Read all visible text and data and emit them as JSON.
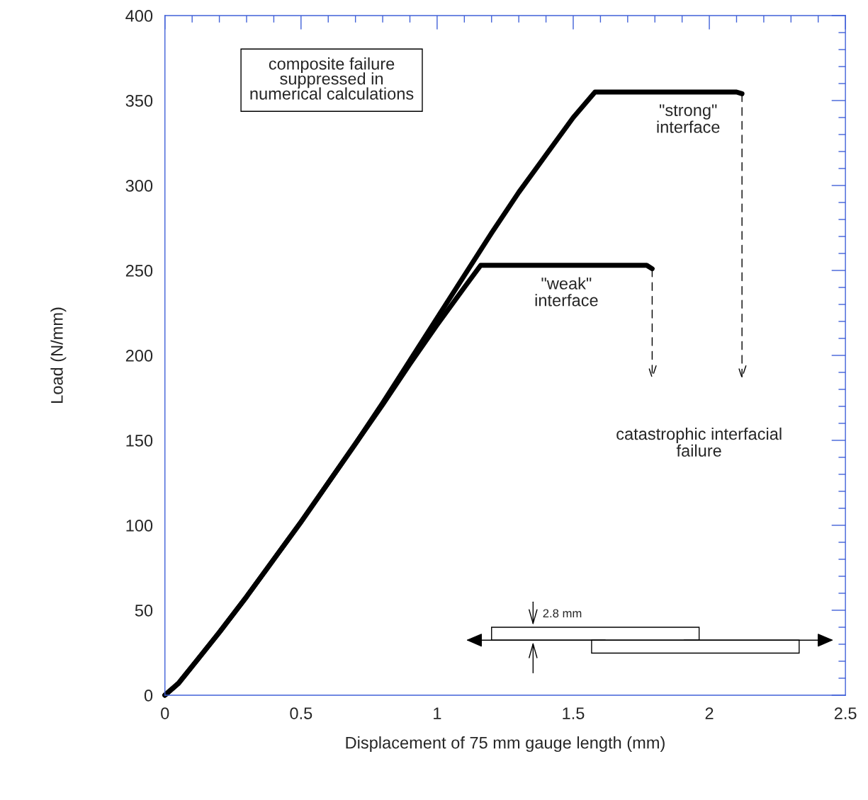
{
  "chart_data": {
    "type": "line",
    "xlabel": "Displacement of 75 mm gauge length (mm)",
    "ylabel": "Load (N/mm)",
    "xlim": [
      0,
      2.5
    ],
    "ylim": [
      0,
      400
    ],
    "xticks": [
      0,
      0.5,
      1,
      1.5,
      2,
      2.5
    ],
    "yticks": [
      0,
      50,
      100,
      150,
      200,
      250,
      300,
      350,
      400
    ],
    "grid": false,
    "legend": false,
    "marker": "none",
    "line_style": "solid",
    "series": [
      {
        "name": "\"strong\"\ninterface",
        "color": "#000000",
        "x": [
          0,
          0.05,
          0.12,
          0.2,
          0.3,
          0.4,
          0.5,
          0.6,
          0.7,
          0.8,
          0.9,
          1.0,
          1.1,
          1.2,
          1.3,
          1.4,
          1.5,
          1.58,
          2.1,
          2.12
        ],
        "values": [
          0,
          7,
          21,
          37,
          58,
          80,
          102,
          125,
          148,
          172,
          197,
          222,
          247,
          272,
          296,
          318,
          340,
          355,
          355,
          354
        ]
      },
      {
        "name": "\"weak\"\ninterface",
        "color": "#000000",
        "x": [
          0,
          0.05,
          0.12,
          0.2,
          0.3,
          0.4,
          0.5,
          0.6,
          0.7,
          0.8,
          0.9,
          1.0,
          1.1,
          1.16,
          1.77,
          1.79
        ],
        "values": [
          0,
          7,
          21,
          37,
          58,
          80,
          102,
          125,
          148,
          171,
          195,
          218,
          240,
          253,
          253,
          251
        ]
      }
    ],
    "annotations": [
      "composite failure\nsuppressed in\nnumerical calculations",
      "catastrophic interfacial\nfailure",
      "2.8 mm"
    ]
  }
}
